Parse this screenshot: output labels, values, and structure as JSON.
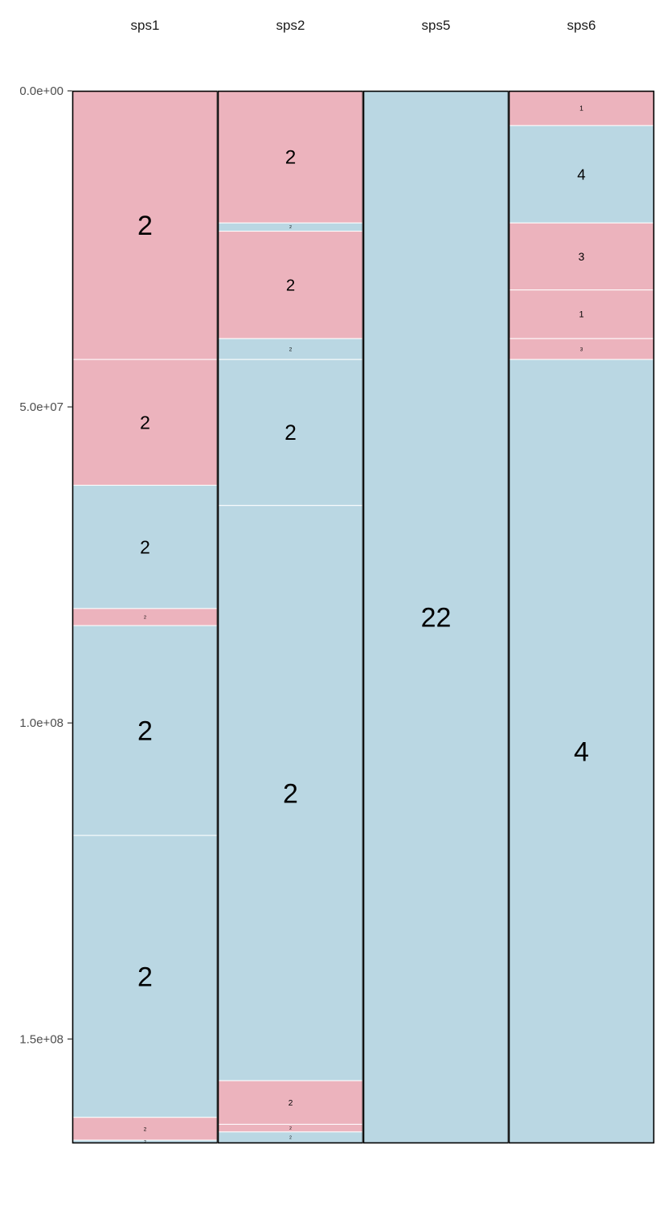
{
  "colors": {
    "pink": "#ecb3bd",
    "blue": "#bad7e3",
    "divider": "#ffffff",
    "border": "#000000",
    "tick_text": "#4d4d4d"
  },
  "chart_data": {
    "type": "bar",
    "subtype": "stacked-segment-columns",
    "title": "",
    "xlabel": "",
    "ylabel": "",
    "y_reversed": true,
    "ylim": [
      0,
      166500000
    ],
    "yticks": [
      0,
      50000000,
      100000000,
      150000000
    ],
    "ytick_labels": [
      "0.0e+00",
      "5.0e+07",
      "1.0e+08",
      "1.5e+08"
    ],
    "grid": false,
    "legend": "none",
    "categories": [
      "sps1",
      "sps2",
      "sps5",
      "sps6"
    ],
    "columns": [
      {
        "name": "sps1",
        "segments": [
          {
            "start": 0,
            "end": 42500000,
            "color": "pink",
            "label": "2"
          },
          {
            "start": 42500000,
            "end": 62400000,
            "color": "pink",
            "label": "2"
          },
          {
            "start": 62400000,
            "end": 81900000,
            "color": "blue",
            "label": "2"
          },
          {
            "start": 81900000,
            "end": 84600000,
            "color": "pink",
            "label": "2"
          },
          {
            "start": 84600000,
            "end": 117800000,
            "color": "blue",
            "label": "2"
          },
          {
            "start": 117800000,
            "end": 162400000,
            "color": "blue",
            "label": "2"
          },
          {
            "start": 162400000,
            "end": 166000000,
            "color": "pink",
            "label": "2"
          },
          {
            "start": 166000000,
            "end": 166500000,
            "color": "blue",
            "label": "2"
          }
        ]
      },
      {
        "name": "sps2",
        "segments": [
          {
            "start": 0,
            "end": 20900000,
            "color": "pink",
            "label": "2"
          },
          {
            "start": 20900000,
            "end": 22200000,
            "color": "blue",
            "label": "2"
          },
          {
            "start": 22200000,
            "end": 39200000,
            "color": "pink",
            "label": "2"
          },
          {
            "start": 39200000,
            "end": 42500000,
            "color": "blue",
            "label": "2"
          },
          {
            "start": 42500000,
            "end": 65600000,
            "color": "blue",
            "label": "2"
          },
          {
            "start": 65600000,
            "end": 156600000,
            "color": "blue",
            "label": "2"
          },
          {
            "start": 156600000,
            "end": 163500000,
            "color": "pink",
            "label": "2"
          },
          {
            "start": 163500000,
            "end": 164700000,
            "color": "pink",
            "label": "2"
          },
          {
            "start": 164700000,
            "end": 166500000,
            "color": "blue",
            "label": "2"
          }
        ]
      },
      {
        "name": "sps5",
        "segments": [
          {
            "start": 0,
            "end": 166500000,
            "color": "blue",
            "label": "22"
          }
        ]
      },
      {
        "name": "sps6",
        "segments": [
          {
            "start": 0,
            "end": 5500000,
            "color": "pink",
            "label": "1"
          },
          {
            "start": 5500000,
            "end": 20900000,
            "color": "blue",
            "label": "4"
          },
          {
            "start": 20900000,
            "end": 31500000,
            "color": "pink",
            "label": "3"
          },
          {
            "start": 31500000,
            "end": 39200000,
            "color": "pink",
            "label": "1"
          },
          {
            "start": 39200000,
            "end": 42500000,
            "color": "pink",
            "label": "3"
          },
          {
            "start": 42500000,
            "end": 166500000,
            "color": "blue",
            "label": "4"
          }
        ]
      }
    ]
  }
}
